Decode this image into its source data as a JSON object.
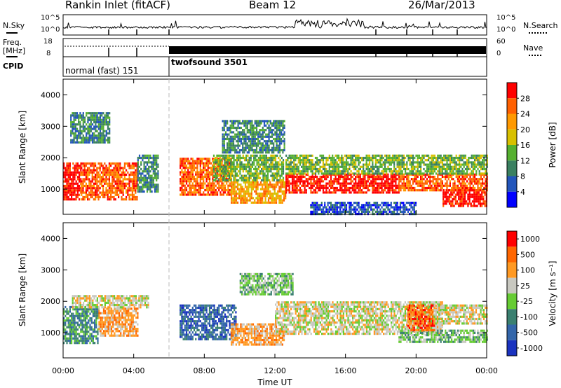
{
  "header": {
    "station": "Rankin Inlet (fitACF)",
    "beam": "Beam 12",
    "date": "26/Mar/2013"
  },
  "panels": {
    "nsky_label": "N.Sky",
    "nsky_tick_top": "10^5",
    "nsky_tick_bottom": "10^0",
    "nsearch_label": "N.Search",
    "nsearch_tick_top": "10^5",
    "nsearch_tick_bottom": "10^0",
    "freq_label": "Freq.",
    "freq_unit": "[MHz]",
    "freq_tick_top": "18",
    "freq_tick_bottom": "8",
    "nave_label": "Nave",
    "nave_tick_top": "60",
    "nave_tick_bottom": "0",
    "cpid_label": "CPID",
    "modes": [
      {
        "label": "normal (fast) 151",
        "start_hour": 0,
        "end_hour": 6
      },
      {
        "label": "twofsound 3501",
        "start_hour": 6,
        "end_hour": 24
      }
    ]
  },
  "chart_data": [
    {
      "type": "heatmap",
      "name": "power",
      "ylabel": "Slant Range [km]",
      "xlabel": "Time UT",
      "xlim": [
        0,
        24
      ],
      "ylim": [
        200,
        4500
      ],
      "yticks": [
        "1000",
        "2000",
        "3000",
        "4000"
      ],
      "xticks": [
        "00:00",
        "04:00",
        "08:00",
        "12:00",
        "16:00",
        "20:00",
        "00:00"
      ],
      "colorbar": {
        "label": "Power [dB]",
        "ticks": [
          "4",
          "8",
          "12",
          "16",
          "20",
          "24",
          "28"
        ],
        "colors": [
          "#0000ff",
          "#2255bb",
          "#3a8060",
          "#55b030",
          "#d8c000",
          "#ff9900",
          "#ff6000",
          "#ff0000"
        ]
      },
      "regions": [
        {
          "t0": 0.0,
          "t1": 1.0,
          "r0": 650,
          "r1": 1850,
          "level": 7
        },
        {
          "t0": 1.0,
          "t1": 4.2,
          "r0": 650,
          "r1": 1850,
          "level": 6
        },
        {
          "t0": 4.2,
          "t1": 5.4,
          "r0": 900,
          "r1": 2100,
          "level": 2
        },
        {
          "t0": 0.4,
          "t1": 2.6,
          "r0": 2500,
          "r1": 3450,
          "level": 2
        },
        {
          "t0": 6.6,
          "t1": 9.5,
          "r0": 800,
          "r1": 2000,
          "level": 6
        },
        {
          "t0": 9.5,
          "t1": 12.6,
          "r0": 600,
          "r1": 1250,
          "level": 5
        },
        {
          "t0": 8.5,
          "t1": 12.5,
          "r0": 1300,
          "r1": 2100,
          "level": 3
        },
        {
          "t0": 9.0,
          "t1": 12.5,
          "r0": 2200,
          "r1": 3200,
          "level": 2
        },
        {
          "t0": 12.6,
          "t1": 19.0,
          "r0": 900,
          "r1": 1500,
          "level": 7
        },
        {
          "t0": 12.6,
          "t1": 19.0,
          "r0": 1500,
          "r1": 2100,
          "level": 3
        },
        {
          "t0": 19.0,
          "t1": 24.0,
          "r0": 1000,
          "r1": 1500,
          "level": 6
        },
        {
          "t0": 21.5,
          "t1": 24.0,
          "r0": 500,
          "r1": 1000,
          "level": 7
        },
        {
          "t0": 19.0,
          "t1": 24.0,
          "r0": 1500,
          "r1": 2100,
          "level": 3
        },
        {
          "t0": 14.0,
          "t1": 20.0,
          "r0": 200,
          "r1": 600,
          "level": 1
        }
      ]
    },
    {
      "type": "heatmap",
      "name": "velocity",
      "ylabel": "Slant Range [km]",
      "xlabel": "Time UT",
      "xlim": [
        0,
        24
      ],
      "ylim": [
        200,
        4500
      ],
      "yticks": [
        "1000",
        "2000",
        "3000",
        "4000"
      ],
      "xticks": [
        "00:00",
        "04:00",
        "08:00",
        "12:00",
        "16:00",
        "20:00",
        "00:00"
      ],
      "colorbar": {
        "label": "Velocity [m s⁻¹]",
        "ticks": [
          "1000",
          "500",
          "100",
          "25",
          "-25",
          "-100",
          "-500",
          "-1000"
        ],
        "colors": [
          "#1a33c0",
          "#3366aa",
          "#3a8070",
          "#66cc33",
          "#c8c8c0",
          "#ff9922",
          "#ff6600",
          "#ff0000"
        ]
      },
      "regions": [
        {
          "t0": 0.0,
          "t1": 2.0,
          "r0": 650,
          "r1": 1850,
          "level": 2
        },
        {
          "t0": 2.0,
          "t1": 4.2,
          "r0": 900,
          "r1": 1800,
          "level": 5
        },
        {
          "t0": 0.5,
          "t1": 4.8,
          "r0": 1800,
          "r1": 2200,
          "level": 4
        },
        {
          "t0": 6.6,
          "t1": 9.8,
          "r0": 800,
          "r1": 1900,
          "level": 1
        },
        {
          "t0": 9.5,
          "t1": 12.5,
          "r0": 650,
          "r1": 1300,
          "level": 5
        },
        {
          "t0": 12.0,
          "t1": 21.5,
          "r0": 1000,
          "r1": 2000,
          "level": 4
        },
        {
          "t0": 10.0,
          "t1": 13.0,
          "r0": 2200,
          "r1": 2900,
          "level": 3
        },
        {
          "t0": 19.0,
          "t1": 24.0,
          "r0": 700,
          "r1": 1100,
          "level": 3
        },
        {
          "t0": 19.5,
          "t1": 21.0,
          "r0": 1100,
          "r1": 1900,
          "level": 6
        },
        {
          "t0": 21.0,
          "t1": 24.0,
          "r0": 1300,
          "r1": 1900,
          "level": 4
        }
      ]
    }
  ]
}
